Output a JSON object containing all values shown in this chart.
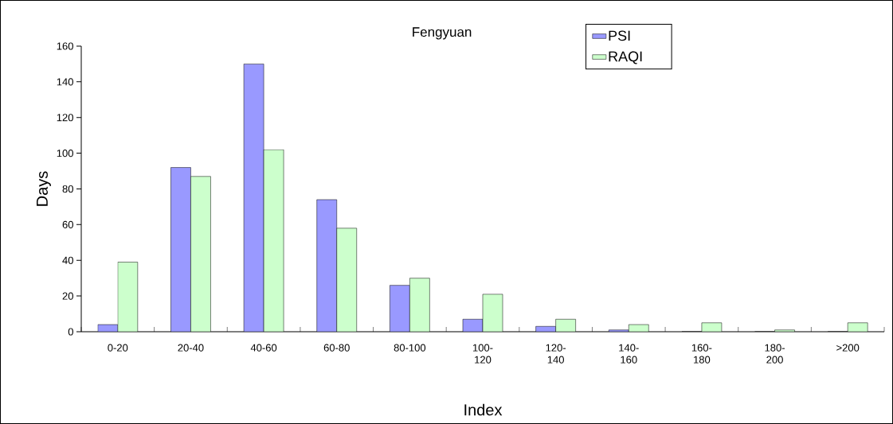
{
  "chart_data": {
    "type": "bar",
    "title": "Fengyuan",
    "xlabel": "Index",
    "ylabel": "Days",
    "categories": [
      "0-20",
      "20-40",
      "40-60",
      "60-80",
      "80-100",
      "100-120",
      "120-140",
      "140-160",
      "160-180",
      "180-200",
      ">200"
    ],
    "series": [
      {
        "name": "PSI",
        "color": "#9999ff",
        "values": [
          4,
          92,
          150,
          74,
          26,
          7,
          3,
          1,
          0,
          0,
          0
        ]
      },
      {
        "name": "RAQI",
        "color": "#ccffcc",
        "values": [
          39,
          87,
          102,
          58,
          30,
          21,
          7,
          4,
          5,
          1,
          5
        ]
      }
    ],
    "ylim": [
      0,
      160
    ],
    "yticks": [
      0,
      20,
      40,
      60,
      80,
      100,
      120,
      140,
      160
    ],
    "grid": false,
    "legend": "top right"
  }
}
